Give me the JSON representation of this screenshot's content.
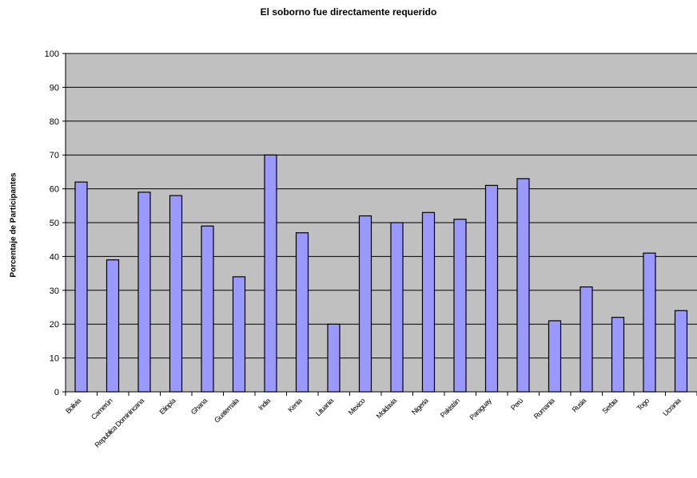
{
  "chart_data": {
    "type": "bar",
    "title": "El soborno fue directamente requerido",
    "xlabel": "",
    "ylabel": "Porcentaje de Participantes",
    "ylim": [
      0,
      100
    ],
    "yticks": [
      0,
      10,
      20,
      30,
      40,
      50,
      60,
      70,
      80,
      90,
      100
    ],
    "grid": true,
    "legend": "none",
    "categories": [
      "Bolivia",
      "Camerún",
      "Republica Dominincana",
      "Etiopía",
      "Ghana",
      "Guatemala",
      "India",
      "Kenia",
      "Lituania",
      "Mexico",
      "Moldavia",
      "Nigeria",
      "Pakistán",
      "Paraguay",
      "Perú",
      "Rumania",
      "Rusia",
      "Serbia",
      "Togo",
      "Ucrania"
    ],
    "values": [
      62,
      39,
      59,
      58,
      49,
      34,
      70,
      47,
      20,
      52,
      50,
      53,
      51,
      61,
      63,
      21,
      31,
      22,
      41,
      24
    ],
    "colors": {
      "bar_fill": "#9999ff",
      "plot_background": "#c0c0c0",
      "gridline": "#000000"
    }
  }
}
